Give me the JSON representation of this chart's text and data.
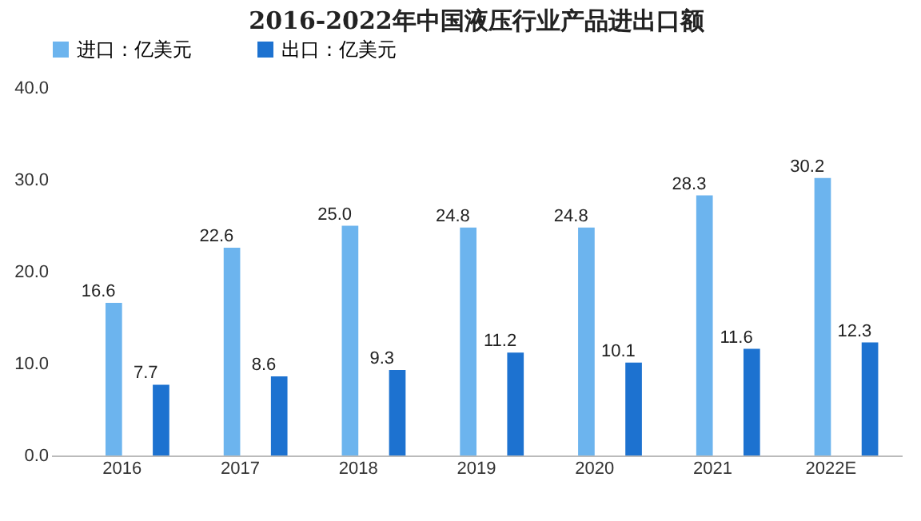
{
  "chart_data": {
    "type": "bar",
    "title": "2016-2022年中国液压行业产品进出口额",
    "categories": [
      "2016",
      "2017",
      "2018",
      "2019",
      "2020",
      "2021",
      "2022E"
    ],
    "series": [
      {
        "name": "进口：亿美元",
        "color": "#6cb4ee",
        "values": [
          16.6,
          22.6,
          25.0,
          24.8,
          24.8,
          28.3,
          30.2
        ],
        "value_labels": [
          "16.6",
          "22.6",
          "25.0",
          "24.8",
          "24.8",
          "28.3",
          "30.2"
        ]
      },
      {
        "name": "出口：亿美元",
        "color": "#1d72d0",
        "values": [
          7.7,
          8.6,
          9.3,
          11.2,
          10.1,
          11.6,
          12.3
        ],
        "value_labels": [
          "7.7",
          "8.6",
          "9.3",
          "11.2",
          "10.1",
          "11.6",
          "12.3"
        ]
      }
    ],
    "ylim": [
      0,
      40
    ],
    "yticks": [
      {
        "value": 0,
        "label": "0.0"
      },
      {
        "value": 10,
        "label": "10.0"
      },
      {
        "value": 20,
        "label": "20.0"
      },
      {
        "value": 30,
        "label": "30.0"
      },
      {
        "value": 40,
        "label": "40.0"
      }
    ],
    "grid": false,
    "legend": "top"
  }
}
